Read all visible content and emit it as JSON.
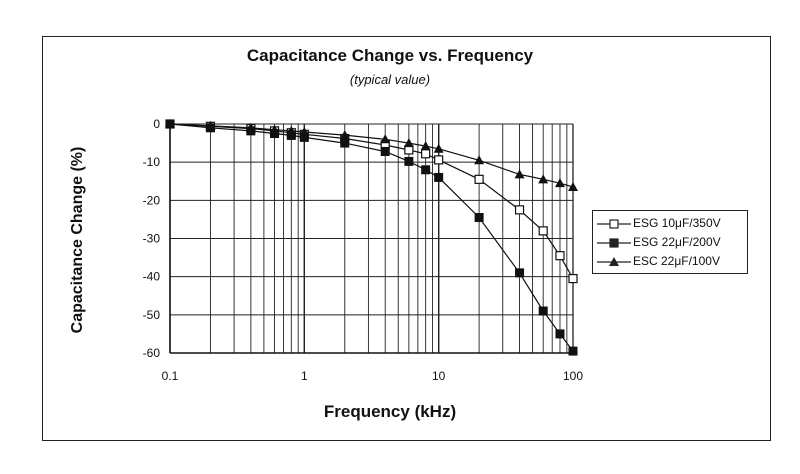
{
  "chart_data": {
    "type": "line",
    "title": "Capacitance Change vs. Frequency",
    "subtitle": "(typical value)",
    "xlabel": "Frequency (kHz)",
    "ylabel": "Capacitance Change (%)",
    "xscale": "log",
    "xlim": [
      0.1,
      100
    ],
    "ylim": [
      -60,
      0
    ],
    "x_ticks": [
      "0.1",
      "1",
      "10",
      "100"
    ],
    "y_ticks": [
      "0",
      "-10",
      "-20",
      "-30",
      "-40",
      "-50",
      "-60"
    ],
    "grid": "log minor vertical, major horizontal",
    "legend_position": "right",
    "series": [
      {
        "name": "ESG 10μF/350V",
        "marker": "open-square",
        "points": [
          [
            0.1,
            0
          ],
          [
            0.2,
            -0.6
          ],
          [
            0.4,
            -1.2
          ],
          [
            0.6,
            -1.8
          ],
          [
            0.8,
            -2.3
          ],
          [
            1,
            -2.7
          ],
          [
            2,
            -3.8
          ],
          [
            4,
            -5.5
          ],
          [
            6,
            -6.8
          ],
          [
            8,
            -7.8
          ],
          [
            10,
            -9.4
          ],
          [
            20,
            -14.5
          ],
          [
            40,
            -22.5
          ],
          [
            60,
            -28
          ],
          [
            80,
            -34.5
          ],
          [
            100,
            -40.5
          ]
        ]
      },
      {
        "name": "ESG 22μF/200V",
        "marker": "filled-square",
        "points": [
          [
            0.1,
            0
          ],
          [
            0.2,
            -1
          ],
          [
            0.4,
            -1.8
          ],
          [
            0.6,
            -2.5
          ],
          [
            0.8,
            -3
          ],
          [
            1,
            -3.5
          ],
          [
            2,
            -5
          ],
          [
            4,
            -7.2
          ],
          [
            6,
            -9.8
          ],
          [
            8,
            -12
          ],
          [
            10,
            -14
          ],
          [
            20,
            -24.5
          ],
          [
            40,
            -39
          ],
          [
            60,
            -49
          ],
          [
            80,
            -55
          ],
          [
            100,
            -59.5
          ]
        ]
      },
      {
        "name": "ESC 22μF/100V",
        "marker": "filled-triangle",
        "points": [
          [
            0.1,
            0
          ],
          [
            0.2,
            -0.5
          ],
          [
            0.4,
            -1
          ],
          [
            0.6,
            -1.5
          ],
          [
            0.8,
            -1.8
          ],
          [
            1,
            -2.1
          ],
          [
            2,
            -2.9
          ],
          [
            4,
            -4
          ],
          [
            6,
            -5
          ],
          [
            8,
            -5.8
          ],
          [
            10,
            -6.5
          ],
          [
            20,
            -9.5
          ],
          [
            40,
            -13.2
          ],
          [
            60,
            -14.5
          ],
          [
            80,
            -15.5
          ],
          [
            100,
            -16.5
          ]
        ]
      }
    ]
  }
}
